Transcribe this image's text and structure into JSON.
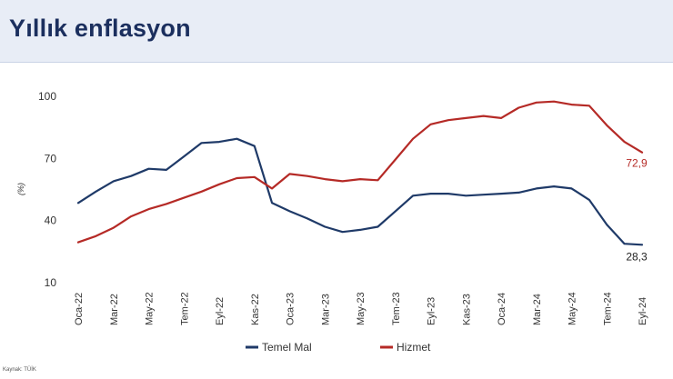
{
  "slide": {
    "title": "Yıllık enflasyon",
    "source": "Kaynak: TÜİK"
  },
  "chart_data": {
    "type": "line",
    "ylabel": "(%)",
    "ylim": [
      10,
      100
    ],
    "yticks": [
      10,
      40,
      70,
      100
    ],
    "grid": false,
    "legend_position": "bottom",
    "x": [
      "Oca-22",
      "Şub-22",
      "Mar-22",
      "Nis-22",
      "May-22",
      "Haz-22",
      "Tem-22",
      "Ağu-22",
      "Eyl-22",
      "Eki-22",
      "Kas-22",
      "Ara-22",
      "Oca-23",
      "Şub-23",
      "Mar-23",
      "Nis-23",
      "May-23",
      "Haz-23",
      "Tem-23",
      "Ağu-23",
      "Eyl-23",
      "Eki-23",
      "Kas-23",
      "Ara-23",
      "Oca-24",
      "Şub-24",
      "Mar-24",
      "Nis-24",
      "May-24",
      "Haz-24",
      "Tem-24",
      "Ağu-24",
      "Eyl-24"
    ],
    "x_tick_labels": [
      "Oca-22",
      "Mar-22",
      "May-22",
      "Tem-22",
      "Eyl-22",
      "Kas-22",
      "Oca-23",
      "Mar-23",
      "May-23",
      "Tem-23",
      "Eyl-23",
      "Kas-23",
      "Oca-24",
      "Mar-24",
      "May-24",
      "Tem-24",
      "Eyl-24"
    ],
    "x_tick_indices": [
      0,
      2,
      4,
      6,
      8,
      10,
      12,
      14,
      16,
      18,
      20,
      22,
      24,
      26,
      28,
      30,
      32
    ],
    "series": [
      {
        "name": "Temel Mal",
        "color": "#1f3a68",
        "values": [
          48.5,
          54,
          59,
          61.5,
          65,
          64.5,
          71,
          77.5,
          78,
          79.5,
          76,
          48.5,
          44.5,
          41,
          37,
          34.5,
          35.5,
          37,
          44.5,
          52,
          53,
          53,
          52,
          52.5,
          53,
          53.5,
          55.5,
          56.5,
          55.5,
          50,
          38,
          28.8,
          28.3
        ],
        "end_label": "28,3"
      },
      {
        "name": "Hizmet",
        "color": "#b52a26",
        "values": [
          29.5,
          32.5,
          36.5,
          42,
          45.5,
          48,
          51,
          54,
          57.5,
          60.5,
          61,
          55.5,
          62.5,
          61.5,
          60,
          59,
          60,
          59.5,
          69.5,
          79.5,
          86.5,
          88.5,
          89.5,
          90.5,
          89.5,
          94.5,
          97,
          97.5,
          96,
          95.5,
          86,
          78,
          72.9
        ],
        "end_label": "72,9"
      }
    ]
  }
}
